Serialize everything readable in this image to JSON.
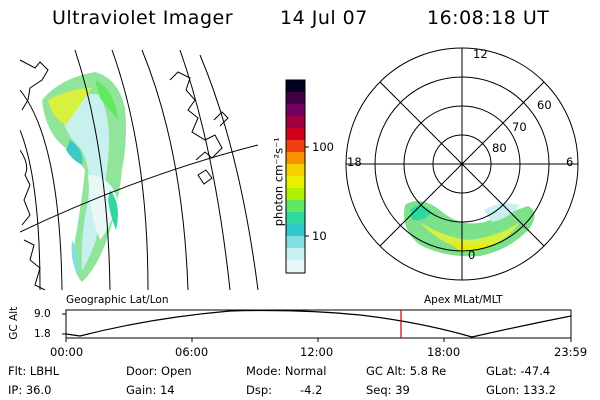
{
  "header": {
    "instrument": "Ultraviolet Imager",
    "date": "14 Jul 07",
    "time": "16:08:18 UT"
  },
  "colorbar": {
    "unit_label": "photon cm⁻²s⁻¹",
    "ticks": [
      "100",
      "10"
    ],
    "colors": [
      "#000020",
      "#400040",
      "#700060",
      "#a00040",
      "#d00020",
      "#f04010",
      "#f89000",
      "#f8d000",
      "#e8f000",
      "#b0f000",
      "#60e860",
      "#30d8a0",
      "#30c8c8",
      "#80e0e0",
      "#c8f0f0",
      "#e8f8f8"
    ]
  },
  "geo_map": {
    "label": "Geographic Lat/Lon"
  },
  "polar_plot": {
    "label": "Apex MLat/MLT",
    "mlt_labels": [
      "12",
      "6",
      "0",
      "18"
    ],
    "lat_labels": [
      "60",
      "70",
      "80"
    ]
  },
  "alt_plot": {
    "ylabel": "GC Alt",
    "yticks": [
      "9.0",
      "1.8"
    ],
    "xticks": [
      "00:00",
      "06:00",
      "12:00",
      "18:00",
      "23:59"
    ],
    "marker_time": "16:08:18",
    "marker_color": "#cc0000"
  },
  "info": {
    "row1": {
      "flt": "Flt: LBHL",
      "door": "Door: Open",
      "mode": "Mode: Normal",
      "gcalt": "GC Alt: 5.8 Re",
      "glat": "GLat: -47.4"
    },
    "row2": {
      "ip": "IP: 36.0",
      "gain": "Gain: 14",
      "dsp_label": "Dsp:",
      "dsp_value": "-4.2",
      "seq": "Seq: 39",
      "glon": "GLon: 133.2"
    }
  }
}
